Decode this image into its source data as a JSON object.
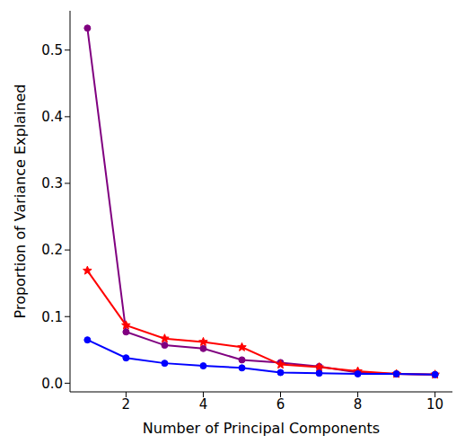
{
  "chart_data": {
    "type": "line",
    "x_label": "Number of Principal Components",
    "y_label": "Proportion of Variance Explained",
    "x": [
      1,
      2,
      3,
      4,
      5,
      6,
      7,
      8,
      9,
      10
    ],
    "series": [
      {
        "color": "#800080",
        "marker": "circle",
        "values": [
          0.533,
          0.077,
          0.057,
          0.052,
          0.035,
          0.031,
          0.025,
          0.016,
          0.014,
          0.013
        ]
      },
      {
        "color": "#ff0000",
        "marker": "star",
        "values": [
          0.169,
          0.087,
          0.067,
          0.062,
          0.054,
          0.028,
          0.024,
          0.018,
          0.014,
          0.013
        ]
      },
      {
        "color": "#0000ff",
        "marker": "circle",
        "values": [
          0.065,
          0.038,
          0.03,
          0.026,
          0.023,
          0.016,
          0.015,
          0.014,
          0.014,
          0.013
        ]
      }
    ],
    "xlim": [
      0.55,
      10.45
    ],
    "ylim": [
      -0.013,
      0.559
    ],
    "xticks": [
      2,
      4,
      6,
      8,
      10
    ],
    "yticks": [
      {
        "value": 0,
        "label": "0.0"
      },
      0.1,
      0.2,
      0.3,
      0.4,
      0.5
    ]
  }
}
